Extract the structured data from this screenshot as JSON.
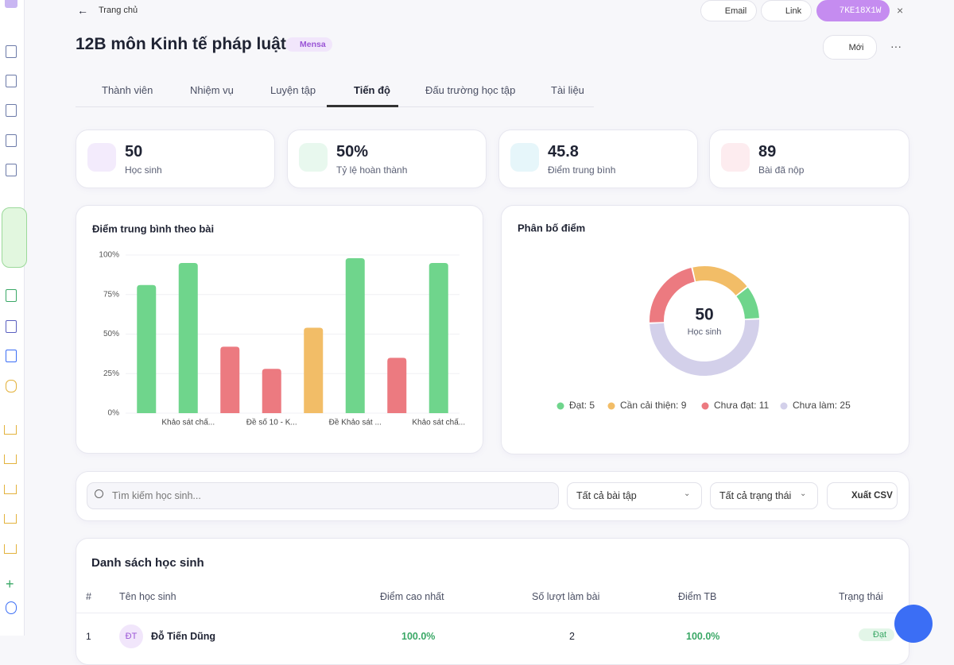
{
  "header": {
    "back": "Trang chủ",
    "title": "12B môn Kinh tế pháp luật",
    "badge": "Mensa",
    "email": "Email",
    "link": "Link",
    "code": "7KE18X1W",
    "new": "Mới"
  },
  "tabs": [
    "Thành viên",
    "Nhiệm vụ",
    "Luyện tập",
    "Tiến độ",
    "Đấu trường học tập",
    "Tài liệu"
  ],
  "stats": [
    {
      "value": "50",
      "label": "Học sinh"
    },
    {
      "value": "50%",
      "label": "Tỷ lệ hoàn thành"
    },
    {
      "value": "45.8",
      "label": "Điểm trung bình"
    },
    {
      "value": "89",
      "label": "Bài đã nộp"
    }
  ],
  "chart_data": [
    {
      "type": "bar",
      "title": "Điểm trung bình theo bài",
      "categories": [
        null,
        "Khảo sát chấ...",
        null,
        "Đề số 10 - K...",
        null,
        "Đề Khảo sát ...",
        null,
        "Khảo sát chấ..."
      ],
      "values": [
        81,
        95,
        42,
        28,
        54,
        98,
        35,
        95
      ],
      "colors": [
        "#6fd58c",
        "#6fd58c",
        "#ec7a80",
        "#ec7a80",
        "#f2bd67",
        "#6fd58c",
        "#ec7a80",
        "#6fd58c"
      ],
      "ylim": [
        0,
        100
      ],
      "yticks": [
        {
          "value": 0,
          "label": "0%"
        },
        {
          "value": 25,
          "label": "25%"
        },
        {
          "value": 50,
          "label": "50%"
        },
        {
          "value": 75,
          "label": "75%"
        },
        {
          "value": 100,
          "label": "100%"
        }
      ],
      "grid": true
    },
    {
      "type": "donut",
      "title": "Phân bố điểm",
      "center_value": "50",
      "center_label": "Học sinh",
      "categories": [
        "Đạt",
        "Cần cải thiện",
        "Chưa đạt",
        "Chưa làm"
      ],
      "values": [
        5,
        9,
        11,
        25
      ],
      "colors": [
        "#6fd58c",
        "#f2bd67",
        "#ec7a80",
        "#d3d0ea"
      ]
    }
  ],
  "filters": {
    "search": "Tìm kiếm học sinh...",
    "assignment": "Tất cả bài tập",
    "status": "Tất cả trạng thái",
    "export": "Xuất CSV"
  },
  "table": {
    "title": "Danh sách học sinh",
    "columns": [
      "#",
      "Tên học sinh",
      "Điểm cao nhất",
      "Số lượt làm bài",
      "Điểm TB",
      "Trạng thái"
    ],
    "rows": [
      [
        "1",
        "ĐT",
        "Đỗ Tiến Dũng",
        "100.0%",
        "2",
        "100.0%",
        "Đạt"
      ]
    ]
  }
}
